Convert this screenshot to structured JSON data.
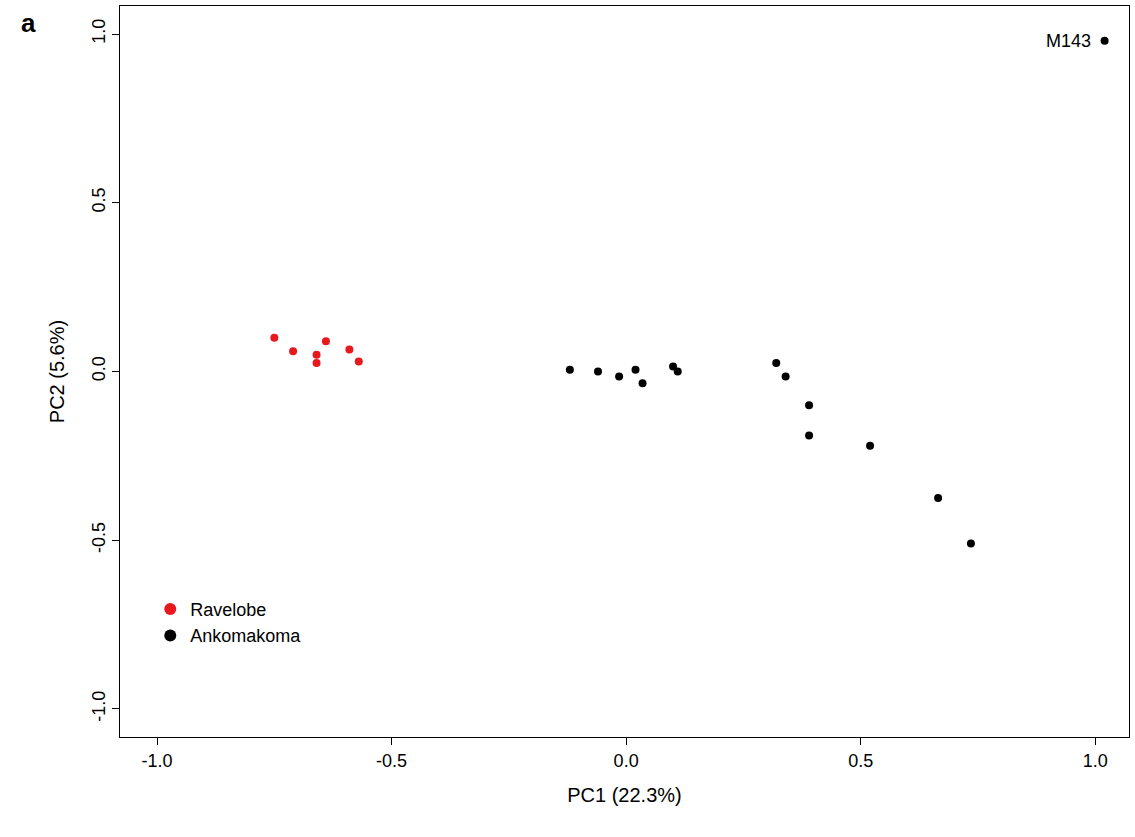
{
  "chart_data": {
    "type": "scatter",
    "panel_label": "a",
    "x_label": "PC1 (22.3%)",
    "y_label": "PC2 (5.6%)",
    "xlim": [
      -1.079,
      1.072
    ],
    "ylim": [
      -1.083,
      1.083
    ],
    "xticks": [
      {
        "value": -1,
        "label": "-1.0"
      },
      {
        "value": -0.5,
        "label": "-0.5"
      },
      {
        "value": 0,
        "label": "0.0"
      },
      {
        "value": 0.5,
        "label": "0.5"
      },
      {
        "value": 1,
        "label": "1.0"
      }
    ],
    "yticks": [
      {
        "value": -1,
        "label": "-1.0"
      },
      {
        "value": -0.5,
        "label": "-0.5"
      },
      {
        "value": 0,
        "label": "0.0"
      },
      {
        "value": 0.5,
        "label": "0.5"
      },
      {
        "value": 1,
        "label": "1.0"
      }
    ],
    "grid": false,
    "legend": "lower left",
    "marker": "circle",
    "series": [
      {
        "name": "Ravelobe",
        "color": "#e8191e",
        "x": [
          -0.75,
          -0.71,
          -0.66,
          -0.66,
          -0.64,
          -0.59,
          -0.57
        ],
        "values": [
          0.1,
          0.06,
          0.05,
          0.025,
          0.09,
          0.065,
          0.03
        ]
      },
      {
        "name": "Ankomakoma",
        "color": "#000000",
        "x": [
          -0.12,
          -0.06,
          -0.015,
          0.02,
          0.035,
          0.1,
          0.11,
          0.32,
          0.34,
          0.39,
          0.39,
          0.52,
          0.665,
          0.735,
          1.02
        ],
        "values": [
          0.005,
          0.0,
          -0.015,
          0.005,
          -0.035,
          0.015,
          0.0,
          0.025,
          -0.015,
          -0.1,
          -0.19,
          -0.22,
          -0.375,
          -0.51,
          0.98
        ]
      }
    ],
    "annotations": [
      {
        "text": "M143",
        "x": 1.02,
        "y": 0.98
      }
    ]
  }
}
